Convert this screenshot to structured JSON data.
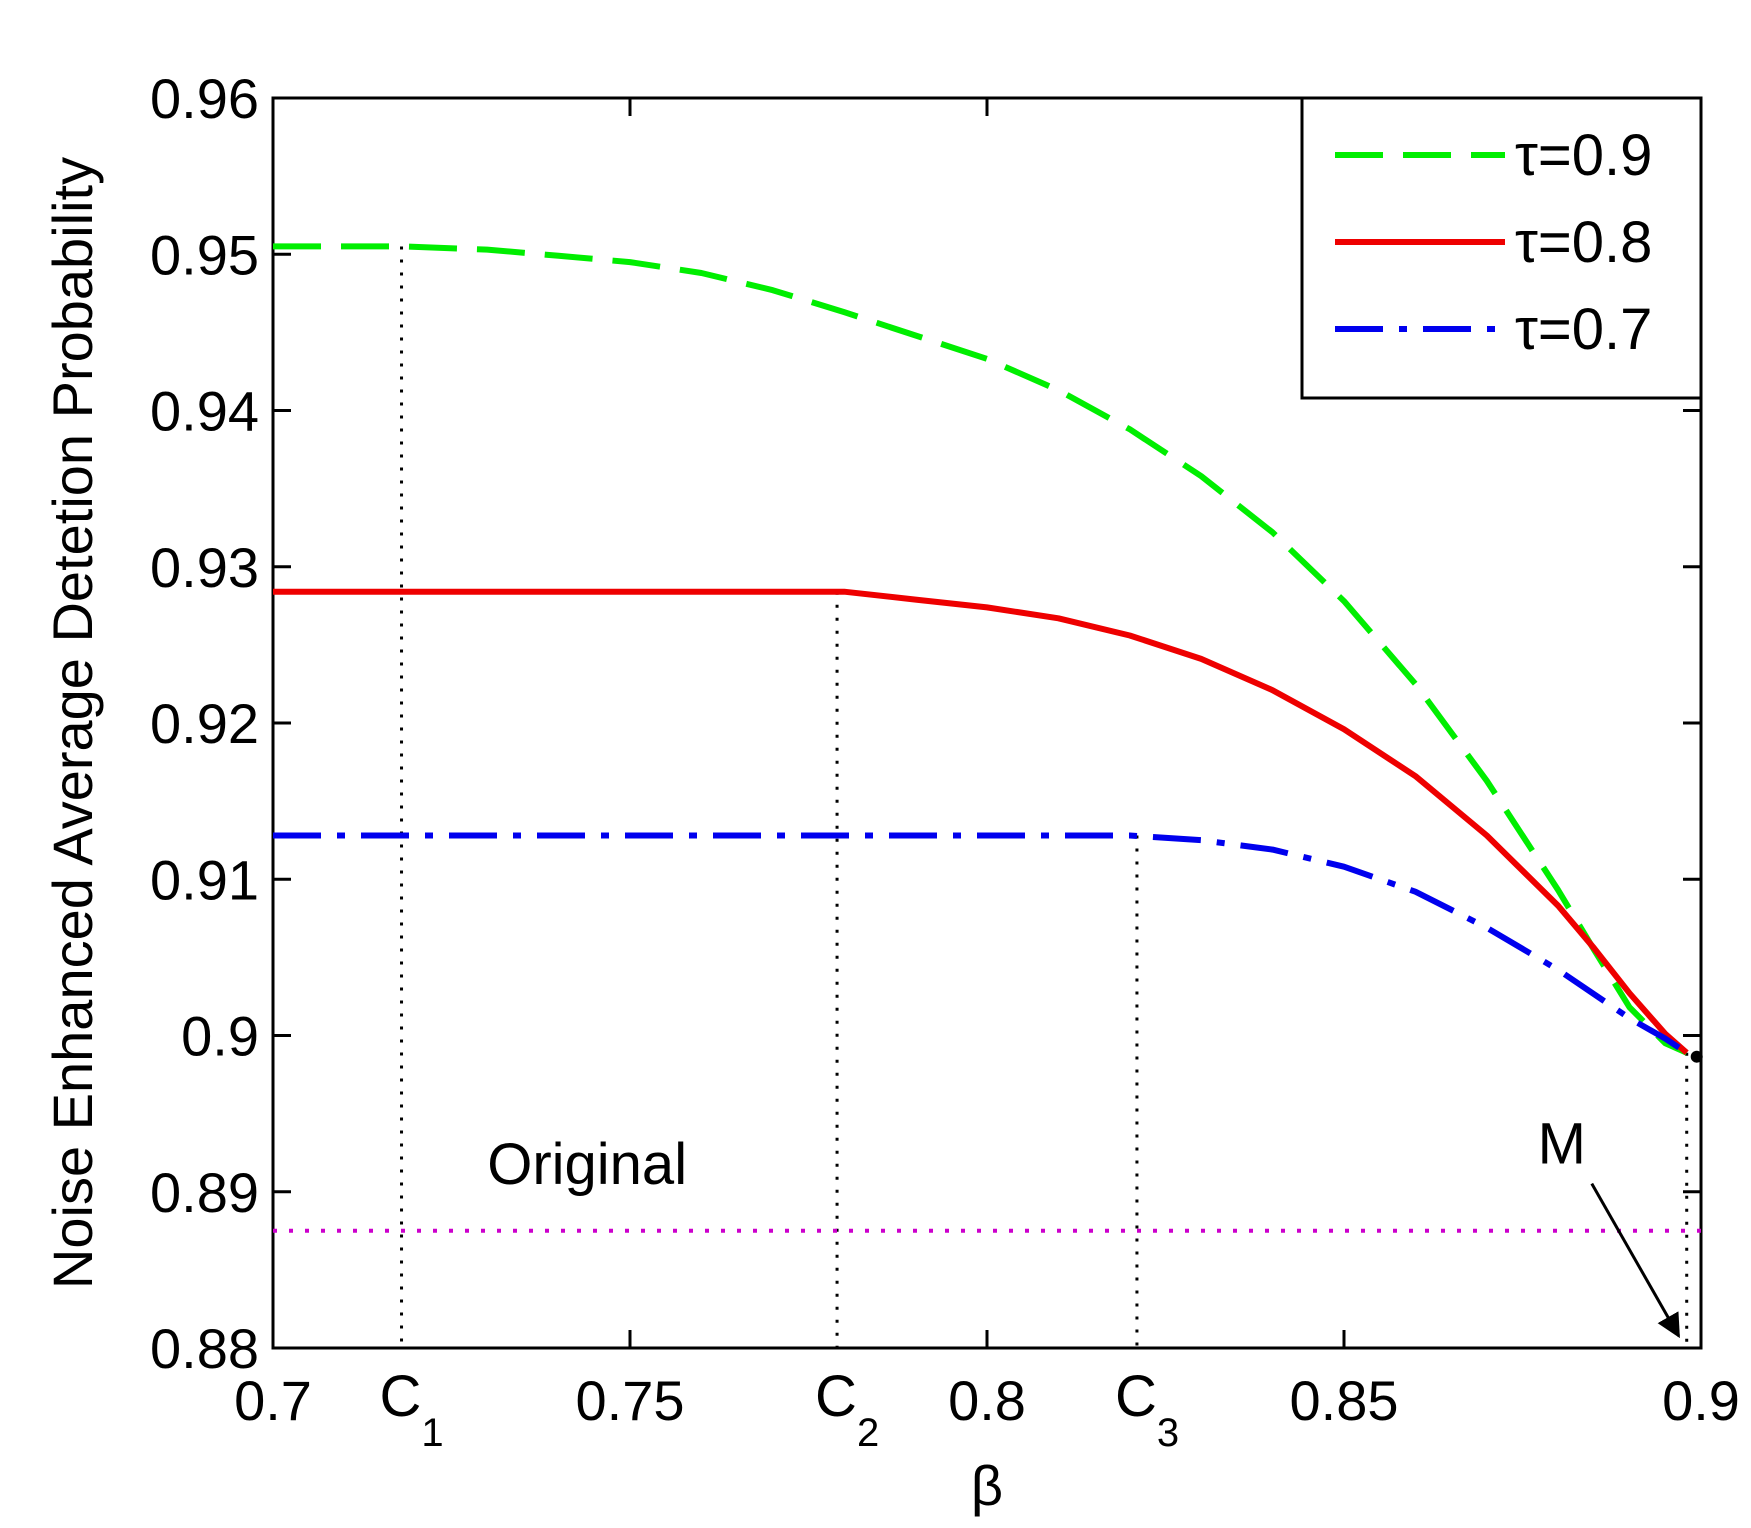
{
  "chart_data": {
    "type": "line",
    "title": "",
    "xlabel": "β",
    "ylabel": "Noise Enhanced Average Detetion Probability",
    "xlim": [
      0.7,
      0.9
    ],
    "ylim": [
      0.88,
      0.96
    ],
    "xticks": [
      0.7,
      0.75,
      0.8,
      0.85,
      0.9
    ],
    "xtick_labels": [
      "0.7",
      "0.75",
      "0.8",
      "0.85",
      "0.9"
    ],
    "yticks": [
      0.88,
      0.89,
      0.9,
      0.91,
      0.92,
      0.93,
      0.94,
      0.95,
      0.96
    ],
    "ytick_labels": [
      "0.88",
      "0.89",
      "0.9",
      "0.91",
      "0.92",
      "0.93",
      "0.94",
      "0.95",
      "0.96"
    ],
    "grid": false,
    "legend": {
      "position": "top-right"
    },
    "series": [
      {
        "name": "τ=0.9",
        "color": "#00ee00",
        "dash": "dashed",
        "x": [
          0.7,
          0.718,
          0.73,
          0.74,
          0.75,
          0.76,
          0.77,
          0.78,
          0.79,
          0.8,
          0.81,
          0.82,
          0.83,
          0.84,
          0.85,
          0.86,
          0.87,
          0.88,
          0.885,
          0.89,
          0.895,
          0.898
        ],
        "y": [
          0.9505,
          0.9505,
          0.9503,
          0.9499,
          0.9495,
          0.9488,
          0.9477,
          0.9463,
          0.9448,
          0.9433,
          0.9413,
          0.9388,
          0.9358,
          0.9322,
          0.9278,
          0.9225,
          0.9163,
          0.9093,
          0.9055,
          0.9018,
          0.8995,
          0.8989
        ]
      },
      {
        "name": "τ=0.8",
        "color": "#ee0000",
        "dash": "solid",
        "x": [
          0.7,
          0.76,
          0.78,
          0.79,
          0.8,
          0.81,
          0.82,
          0.83,
          0.84,
          0.85,
          0.86,
          0.87,
          0.88,
          0.885,
          0.89,
          0.895,
          0.898
        ],
        "y": [
          0.9284,
          0.9284,
          0.9284,
          0.9279,
          0.9274,
          0.9267,
          0.9256,
          0.9241,
          0.9221,
          0.9196,
          0.9166,
          0.9128,
          0.9083,
          0.9056,
          0.9027,
          0.9001,
          0.8989
        ]
      },
      {
        "name": "τ=0.7",
        "color": "#0000ee",
        "dash": "dash-dot",
        "x": [
          0.7,
          0.8,
          0.82,
          0.83,
          0.84,
          0.85,
          0.86,
          0.87,
          0.88,
          0.89,
          0.895,
          0.898
        ],
        "y": [
          0.9128,
          0.9128,
          0.9128,
          0.9125,
          0.9119,
          0.9108,
          0.9092,
          0.9069,
          0.9042,
          0.9011,
          0.8998,
          0.8989
        ]
      },
      {
        "name": "Original",
        "color": "#cc00cc",
        "dash": "dotted",
        "x": [
          0.7,
          0.9
        ],
        "y": [
          0.8875,
          0.8875
        ]
      }
    ],
    "annotations": {
      "original_label": {
        "text": "Original",
        "x": 0.744,
        "y": 0.8905
      },
      "critical_points": [
        {
          "label": "C",
          "sub": "1",
          "x": 0.718,
          "y": 0.9505
        },
        {
          "label": "C",
          "sub": "2",
          "x": 0.779,
          "y": 0.9284
        },
        {
          "label": "C",
          "sub": "3",
          "x": 0.821,
          "y": 0.9128
        }
      ],
      "point_m": {
        "label": "M",
        "x": 0.898,
        "y": 0.8989,
        "text_x": 0.8805,
        "text_y": 0.8918
      }
    }
  }
}
